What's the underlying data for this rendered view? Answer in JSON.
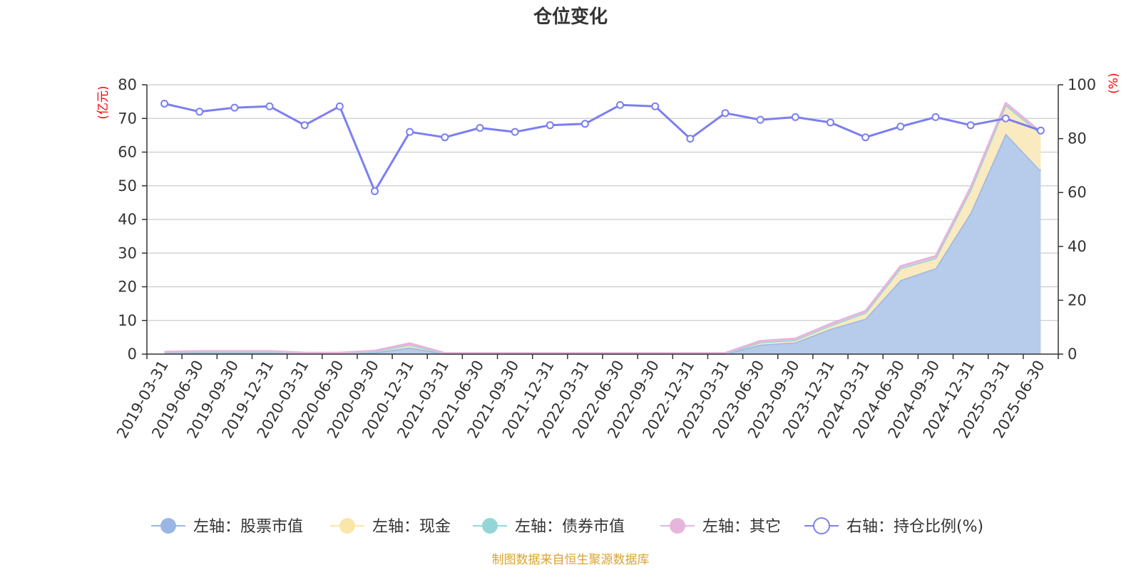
{
  "chart_data": {
    "type": "area",
    "title": "仓位变化",
    "left_unit": "(亿元)",
    "right_unit": "(%)",
    "categories": [
      "2019-03-31",
      "2019-06-30",
      "2019-09-30",
      "2019-12-31",
      "2020-03-31",
      "2020-06-30",
      "2020-09-30",
      "2020-12-31",
      "2021-03-31",
      "2021-06-30",
      "2021-09-30",
      "2021-12-31",
      "2022-03-31",
      "2022-06-30",
      "2022-09-30",
      "2022-12-31",
      "2023-03-31",
      "2023-06-30",
      "2023-09-30",
      "2023-12-31",
      "2024-03-31",
      "2024-06-30",
      "2024-09-30",
      "2024-12-31",
      "2025-03-31",
      "2025-06-30"
    ],
    "y_left": {
      "min": 0,
      "max": 80,
      "ticks": [
        "0",
        "10",
        "20",
        "30",
        "40",
        "50",
        "60",
        "70",
        "80"
      ]
    },
    "y_right": {
      "min": 0,
      "max": 100,
      "ticks": [
        "0",
        "20",
        "40",
        "60",
        "80",
        "100"
      ]
    },
    "grid": true,
    "legend_position": "bottom",
    "series": [
      {
        "name": "左轴：股票市值",
        "axis": "left",
        "stack": true,
        "color": "#9ab7e3",
        "fill": "#b7cbea",
        "values": [
          0.5,
          0.6,
          0.6,
          0.6,
          0.2,
          0.2,
          0.5,
          2.0,
          0.1,
          0.1,
          0.1,
          0.1,
          0.1,
          0.1,
          0.1,
          0.1,
          0.1,
          2.8,
          3.5,
          7.5,
          10.5,
          22.0,
          25.5,
          42.0,
          65.5,
          54.5
        ]
      },
      {
        "name": "左轴：现金",
        "axis": "left",
        "stack": true,
        "color": "#fae6a8",
        "fill": "#faeabf",
        "values": [
          0.1,
          0.2,
          0.2,
          0.2,
          0.1,
          0.1,
          0.3,
          0.8,
          0.1,
          0.1,
          0.1,
          0.1,
          0.1,
          0.1,
          0.1,
          0.1,
          0.1,
          0.7,
          0.7,
          1.0,
          1.8,
          3.5,
          3.0,
          6.8,
          8.5,
          11.0
        ]
      },
      {
        "name": "左轴：债券市值",
        "axis": "left",
        "stack": true,
        "color": "#94d6d7",
        "fill": "#a9dedf",
        "values": [
          0,
          0,
          0,
          0,
          0,
          0,
          0,
          0,
          0,
          0,
          0,
          0,
          0,
          0,
          0,
          0,
          0,
          0,
          0,
          0,
          0,
          0,
          0,
          0,
          0,
          0
        ]
      },
      {
        "name": "左轴：其它",
        "axis": "left",
        "stack": true,
        "color": "#e6b5dc",
        "fill": "#eecbe6",
        "values": [
          0.1,
          0.1,
          0.1,
          0.1,
          0.1,
          0.1,
          0.2,
          0.4,
          0.1,
          0.1,
          0.1,
          0.1,
          0.1,
          0.1,
          0.1,
          0.1,
          0.1,
          0.4,
          0.4,
          0.5,
          0.5,
          0.6,
          0.6,
          0.7,
          0.6,
          0.5
        ]
      },
      {
        "name": "右轴：持仓比例(%)",
        "axis": "right",
        "type": "line",
        "color": "#7b7ff0",
        "values": [
          93.0,
          90.0,
          91.5,
          92.0,
          85.0,
          92.0,
          60.5,
          82.5,
          80.5,
          84.0,
          82.5,
          85.0,
          85.5,
          92.5,
          92.0,
          80.0,
          89.5,
          87.0,
          88.0,
          86.0,
          80.5,
          84.5,
          88.0,
          85.0,
          87.5,
          83.0
        ]
      }
    ]
  },
  "source_text": "制图数据来自恒生聚源数据库"
}
